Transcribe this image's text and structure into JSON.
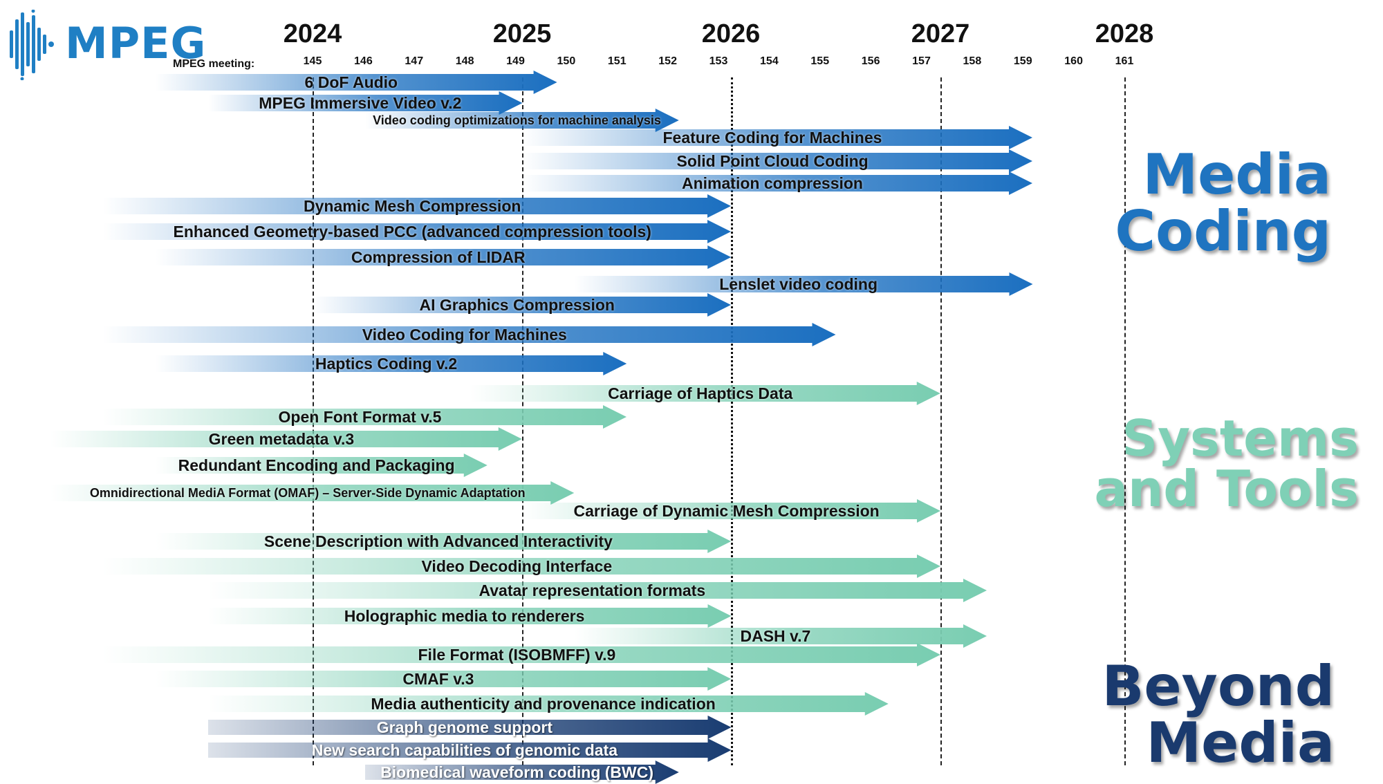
{
  "logo": {
    "text": "MPEG",
    "icon": "mpeg-logo-icon"
  },
  "timeline": {
    "years": [
      "2024",
      "2025",
      "2026",
      "2027",
      "2028"
    ],
    "meeting_label": "MPEG meeting:",
    "meetings": [
      "145",
      "146",
      "147",
      "148",
      "149",
      "150",
      "151",
      "152",
      "153",
      "154",
      "155",
      "156",
      "157",
      "158",
      "159",
      "160",
      "161"
    ]
  },
  "sections": {
    "media": [
      "Media",
      "Coding"
    ],
    "systems": [
      "Systems",
      "and Tools"
    ],
    "beyond": [
      "Beyond",
      "Media"
    ]
  },
  "colors": {
    "media": "#1b6fc0",
    "systems": "#79cdb1",
    "beyond": "#1a3d72"
  },
  "items": [
    {
      "label": "6 DoF Audio",
      "group": "media",
      "start": "2023-04",
      "end": "2025-03"
    },
    {
      "label": "MPEG Immersive Video v.2",
      "group": "media",
      "start": "2023-07",
      "end": "2025-01"
    },
    {
      "label": "Video coding optimizations for machine analysis",
      "group": "media",
      "start": "2024-04",
      "end": "2025-10",
      "small": true
    },
    {
      "label": "Feature Coding for Machines",
      "group": "media",
      "start": "2025-01",
      "end": "2027-07"
    },
    {
      "label": "Solid Point Cloud Coding",
      "group": "media",
      "start": "2025-01",
      "end": "2027-07"
    },
    {
      "label": "Animation compression",
      "group": "media",
      "start": "2025-01",
      "end": "2027-07"
    },
    {
      "label": "Dynamic Mesh Compression",
      "group": "media",
      "start": "2023-01",
      "end": "2026-01"
    },
    {
      "label": "Enhanced Geometry-based PCC (advanced compression tools)",
      "group": "media",
      "start": "2023-01",
      "end": "2026-01"
    },
    {
      "label": "Compression of LIDAR",
      "group": "media",
      "start": "2023-04",
      "end": "2026-01"
    },
    {
      "label": "Lenslet video coding",
      "group": "media",
      "start": "2025-04",
      "end": "2027-07"
    },
    {
      "label": "AI Graphics Compression",
      "group": "media",
      "start": "2024-01",
      "end": "2026-01"
    },
    {
      "label": "Video Coding for Machines",
      "group": "media",
      "start": "2023-01",
      "end": "2026-07"
    },
    {
      "label": "Haptics  Coding v.2",
      "group": "media",
      "start": "2023-04",
      "end": "2025-07"
    },
    {
      "label": "Carriage of Haptics Data",
      "group": "systems",
      "start": "2024-10",
      "end": "2027-01"
    },
    {
      "label": "Open Font Format v.5",
      "group": "systems",
      "start": "2023-01",
      "end": "2025-07"
    },
    {
      "label": "Green metadata v.3",
      "group": "systems",
      "start": "2022-10",
      "end": "2025-01"
    },
    {
      "label": "Redundant Encoding and Packaging",
      "group": "systems",
      "start": "2023-04",
      "end": "2024-11"
    },
    {
      "label": "Omnidirectional MediA Format (OMAF) – Server-Side Dynamic Adaptation",
      "group": "systems",
      "start": "2022-10",
      "end": "2025-04",
      "small": true
    },
    {
      "label": "Carriage of Dynamic Mesh Compression",
      "group": "systems",
      "start": "2025-01",
      "end": "2027-01"
    },
    {
      "label": "Scene Description with Advanced Interactivity",
      "group": "systems",
      "start": "2023-04",
      "end": "2026-01"
    },
    {
      "label": "Video Decoding  Interface",
      "group": "systems",
      "start": "2023-01",
      "end": "2027-01"
    },
    {
      "label": "Avatar representation formats",
      "group": "systems",
      "start": "2023-07",
      "end": "2027-04"
    },
    {
      "label": "Holographic media to renderers",
      "group": "systems",
      "start": "2023-07",
      "end": "2026-01"
    },
    {
      "label": "DASH v.7",
      "group": "systems",
      "start": "2025-04",
      "end": "2027-04"
    },
    {
      "label": "File Format (ISOBMFF) v.9",
      "group": "systems",
      "start": "2023-01",
      "end": "2027-01"
    },
    {
      "label": "CMAF v.3",
      "group": "systems",
      "start": "2023-04",
      "end": "2026-01"
    },
    {
      "label": "Media authenticity and provenance indication",
      "group": "systems",
      "start": "2023-07",
      "end": "2026-10"
    },
    {
      "label": "Graph genome support",
      "group": "beyond",
      "start": "2023-07",
      "end": "2026-01"
    },
    {
      "label": "New search capabilities of genomic data",
      "group": "beyond",
      "start": "2023-07",
      "end": "2026-01"
    },
    {
      "label": "Biomedical waveform coding (BWC)",
      "group": "beyond",
      "start": "2024-04",
      "end": "2025-10"
    }
  ]
}
